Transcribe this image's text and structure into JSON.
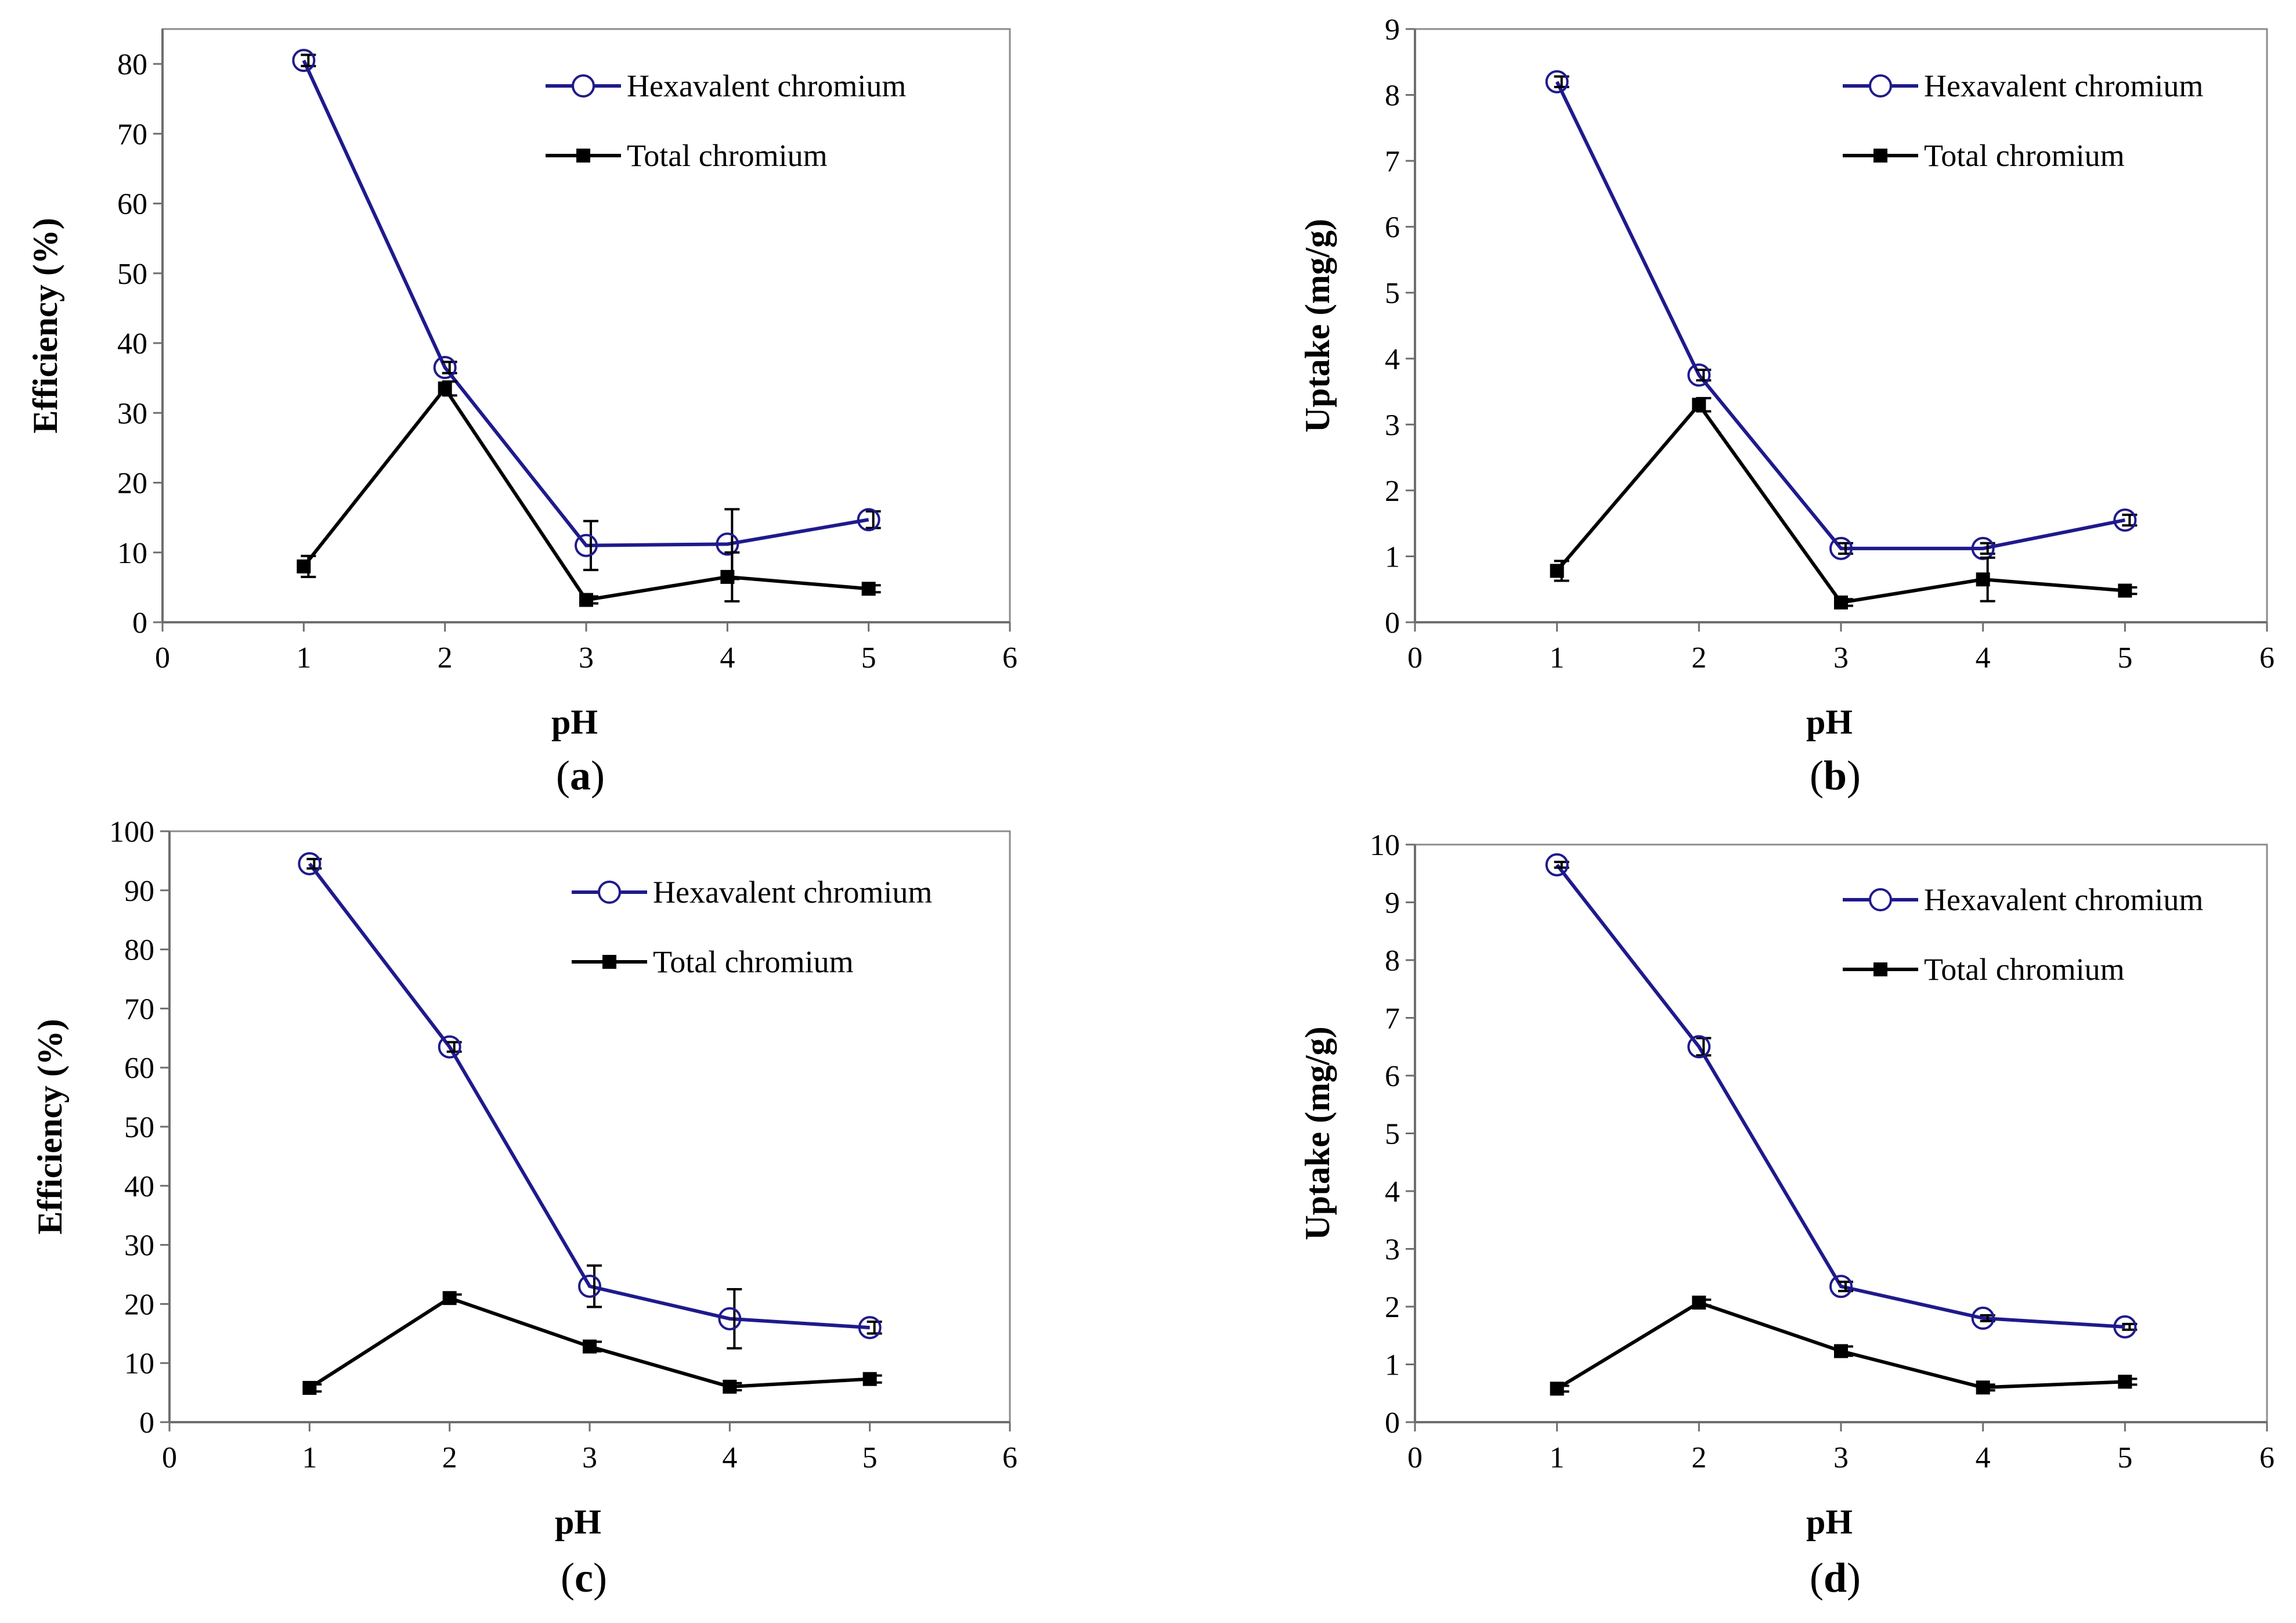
{
  "chart_data": [
    {
      "type": "line",
      "panel": "a",
      "caption_open": "(",
      "caption_letter": "a",
      "caption_close": ")",
      "xlabel": "pH",
      "ylabel": "Efficiency (%)",
      "xlim": [
        0,
        6
      ],
      "ylim": [
        0,
        85
      ],
      "xticks": [
        0,
        1,
        2,
        3,
        4,
        5,
        6
      ],
      "yticks": [
        0,
        10,
        20,
        30,
        40,
        50,
        60,
        70,
        80
      ],
      "x": [
        1,
        2,
        3,
        4,
        5
      ],
      "legend_position": "top-right",
      "series": [
        {
          "name": "Hexavalent chromium",
          "color": "#1f1a8c",
          "marker": "open-circle",
          "values": [
            80.5,
            36.5,
            11.0,
            11.2,
            14.7
          ],
          "errors": [
            0.8,
            0.8,
            3.5,
            5.0,
            1.2
          ]
        },
        {
          "name": "Total chromium",
          "color": "#000000",
          "marker": "filled-square",
          "values": [
            8.0,
            33.5,
            3.2,
            6.5,
            4.8
          ],
          "errors": [
            1.5,
            1.0,
            0.5,
            3.5,
            0.5
          ]
        }
      ]
    },
    {
      "type": "line",
      "panel": "b",
      "caption_open": "(",
      "caption_letter": "b",
      "caption_close": ")",
      "xlabel": "pH",
      "ylabel": "Uptake (mg/g)",
      "xlim": [
        0,
        6
      ],
      "ylim": [
        0,
        9
      ],
      "xticks": [
        0,
        1,
        2,
        3,
        4,
        5,
        6
      ],
      "yticks": [
        0,
        1,
        2,
        3,
        4,
        5,
        6,
        7,
        8,
        9
      ],
      "x": [
        1,
        2,
        3,
        4,
        5
      ],
      "legend_position": "top-right",
      "series": [
        {
          "name": "Hexavalent chromium",
          "color": "#1f1a8c",
          "marker": "open-circle",
          "values": [
            8.2,
            3.75,
            1.12,
            1.12,
            1.55
          ],
          "errors": [
            0.08,
            0.08,
            0.08,
            0.08,
            0.08
          ]
        },
        {
          "name": "Total chromium",
          "color": "#000000",
          "marker": "filled-square",
          "values": [
            0.78,
            3.3,
            0.3,
            0.65,
            0.48
          ],
          "errors": [
            0.15,
            0.1,
            0.05,
            0.33,
            0.05
          ]
        }
      ]
    },
    {
      "type": "line",
      "panel": "c",
      "caption_open": "(",
      "caption_letter": "c",
      "caption_close": ")",
      "xlabel": "pH",
      "ylabel": "Efficiency (%)",
      "xlim": [
        0,
        6
      ],
      "ylim": [
        0,
        100
      ],
      "xticks": [
        0,
        1,
        2,
        3,
        4,
        5,
        6
      ],
      "yticks": [
        0,
        10,
        20,
        30,
        40,
        50,
        60,
        70,
        80,
        90,
        100
      ],
      "x": [
        1,
        2,
        3,
        4,
        5
      ],
      "legend_position": "top-right",
      "series": [
        {
          "name": "Hexavalent chromium",
          "color": "#1f1a8c",
          "marker": "open-circle",
          "values": [
            94.5,
            63.5,
            23.0,
            17.5,
            16.0
          ],
          "errors": [
            0.8,
            0.8,
            3.5,
            5.0,
            1.0
          ]
        },
        {
          "name": "Total chromium",
          "color": "#000000",
          "marker": "filled-square",
          "values": [
            5.8,
            21.0,
            12.8,
            6.0,
            7.3
          ],
          "errors": [
            0.6,
            0.6,
            0.8,
            0.6,
            0.6
          ]
        }
      ]
    },
    {
      "type": "line",
      "panel": "d",
      "caption_open": "(",
      "caption_letter": "d",
      "caption_close": ")",
      "xlabel": "pH",
      "ylabel": "Uptake (mg/g)",
      "xlim": [
        0,
        6
      ],
      "ylim": [
        0,
        10
      ],
      "xticks": [
        0,
        1,
        2,
        3,
        4,
        5,
        6
      ],
      "yticks": [
        0,
        1,
        2,
        3,
        4,
        5,
        6,
        7,
        8,
        9,
        10
      ],
      "x": [
        1,
        2,
        3,
        4,
        5
      ],
      "legend_position": "top-right",
      "series": [
        {
          "name": "Hexavalent chromium",
          "color": "#1f1a8c",
          "marker": "open-circle",
          "values": [
            9.65,
            6.5,
            2.35,
            1.8,
            1.65
          ],
          "errors": [
            0.05,
            0.15,
            0.08,
            0.05,
            0.05
          ]
        },
        {
          "name": "Total chromium",
          "color": "#000000",
          "marker": "filled-square",
          "values": [
            0.58,
            2.07,
            1.23,
            0.6,
            0.7
          ],
          "errors": [
            0.05,
            0.05,
            0.08,
            0.05,
            0.05
          ]
        }
      ]
    }
  ]
}
